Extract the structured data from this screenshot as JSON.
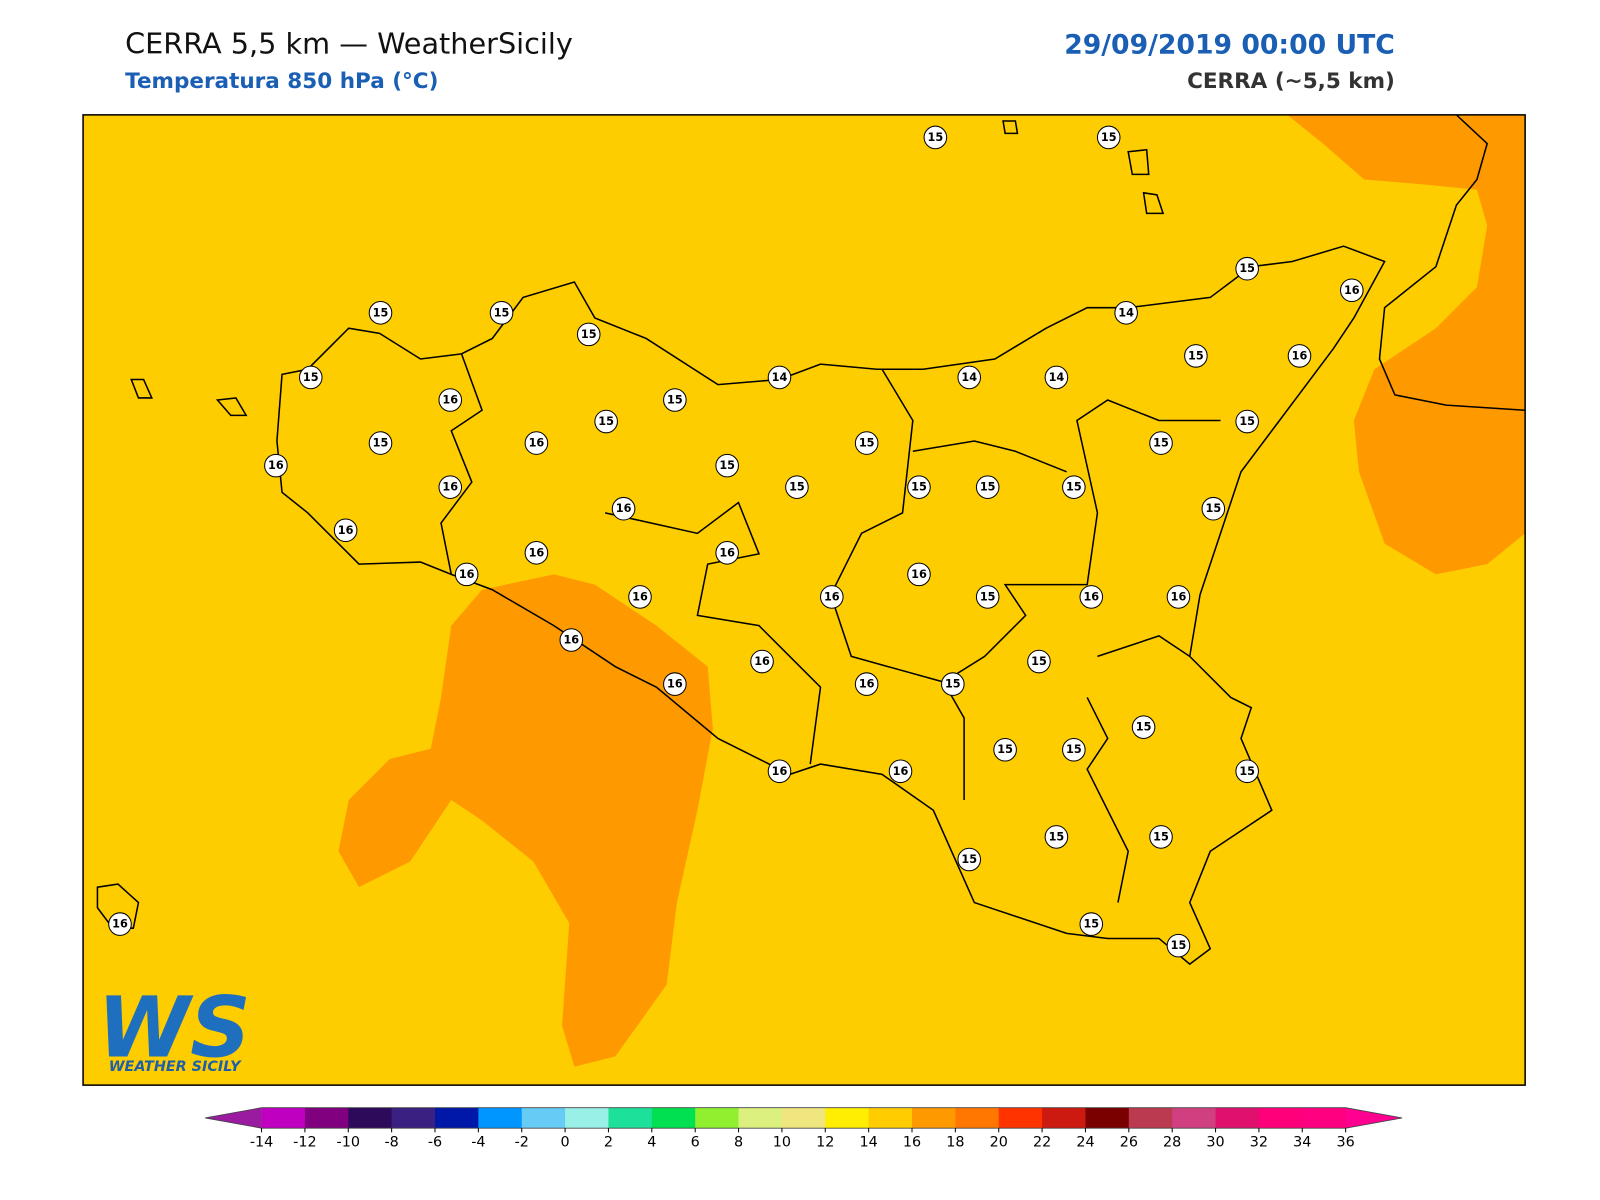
{
  "header": {
    "title": "CERRA 5,5 km — WeatherSicily",
    "subtitle": "Temperatura 850 hPa (°C)",
    "valid_time": "29/09/2019 00:00 UTC",
    "model": "CERRA (~5,5 km)"
  },
  "stations": [
    15,
    15,
    15,
    16,
    15,
    15,
    15,
    14,
    15,
    16,
    15,
    14,
    14,
    14,
    15,
    16,
    15,
    16,
    15,
    16,
    15,
    15,
    15,
    15,
    16,
    15,
    15,
    15,
    15,
    15,
    16,
    16,
    16,
    16,
    16,
    16,
    16,
    16,
    15,
    16,
    16,
    16,
    15,
    16,
    16,
    16,
    15,
    15,
    15,
    15,
    15,
    16,
    16,
    15,
    15,
    15,
    15,
    15,
    16
  ],
  "colorbar": {
    "ticks": [
      -14,
      -12,
      -10,
      -8,
      -6,
      -4,
      -2,
      0,
      2,
      4,
      6,
      8,
      10,
      12,
      14,
      16,
      18,
      20,
      22,
      24,
      26,
      28,
      30,
      32,
      34,
      36
    ],
    "colors": [
      "#c000c0",
      "#800080",
      "#2e0a5a",
      "#3a2080",
      "#0018a8",
      "#0096ff",
      "#66ccf5",
      "#99f0e6",
      "#1de09a",
      "#00e050",
      "#90f030",
      "#dcf080",
      "#f0e680",
      "#ffee00",
      "#ffcc00",
      "#ff9900",
      "#ff7700",
      "#ff3300",
      "#cc1a10",
      "#7a0000",
      "#bb3a50",
      "#d04080",
      "#e0106e",
      "#ff007a",
      "#ff0080"
    ],
    "under_color": "#9a1aa0",
    "over_color": "#ff0090"
  },
  "logo": {
    "mark": "WS",
    "name": "WEATHER SICILY"
  }
}
